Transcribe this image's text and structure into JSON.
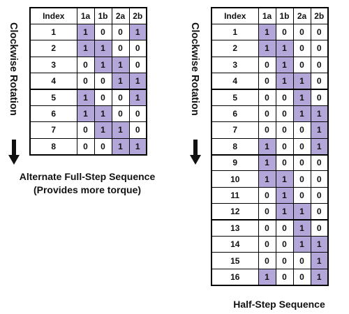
{
  "full_step": {
    "rotation_label": "Clockwise Rotation",
    "caption_line1": "Alternate Full-Step Sequence",
    "caption_line2": "(Provides more torque)",
    "headers": [
      "Index",
      "1a",
      "1b",
      "2a",
      "2b"
    ],
    "rows": [
      [
        "1",
        "1",
        "0",
        "0",
        "1"
      ],
      [
        "2",
        "1",
        "1",
        "0",
        "0"
      ],
      [
        "3",
        "0",
        "1",
        "1",
        "0"
      ],
      [
        "4",
        "0",
        "0",
        "1",
        "1"
      ],
      [
        "5",
        "1",
        "0",
        "0",
        "1"
      ],
      [
        "6",
        "1",
        "1",
        "0",
        "0"
      ],
      [
        "7",
        "0",
        "1",
        "1",
        "0"
      ],
      [
        "8",
        "0",
        "0",
        "1",
        "1"
      ]
    ],
    "highlight_color": "#b3a6d8"
  },
  "half_step": {
    "rotation_label": "Clockwise Rotation",
    "caption": "Half-Step Sequence",
    "headers": [
      "Index",
      "1a",
      "1b",
      "2a",
      "2b"
    ],
    "rows": [
      [
        "1",
        "1",
        "0",
        "0",
        "0"
      ],
      [
        "2",
        "1",
        "1",
        "0",
        "0"
      ],
      [
        "3",
        "0",
        "1",
        "0",
        "0"
      ],
      [
        "4",
        "0",
        "1",
        "1",
        "0"
      ],
      [
        "5",
        "0",
        "0",
        "1",
        "0"
      ],
      [
        "6",
        "0",
        "0",
        "1",
        "1"
      ],
      [
        "7",
        "0",
        "0",
        "0",
        "1"
      ],
      [
        "8",
        "1",
        "0",
        "0",
        "1"
      ],
      [
        "9",
        "1",
        "0",
        "0",
        "0"
      ],
      [
        "10",
        "1",
        "1",
        "0",
        "0"
      ],
      [
        "11",
        "0",
        "1",
        "0",
        "0"
      ],
      [
        "12",
        "0",
        "1",
        "1",
        "0"
      ],
      [
        "13",
        "0",
        "0",
        "1",
        "0"
      ],
      [
        "14",
        "0",
        "0",
        "1",
        "1"
      ],
      [
        "15",
        "0",
        "0",
        "0",
        "1"
      ],
      [
        "16",
        "1",
        "0",
        "0",
        "1"
      ]
    ],
    "highlight_color": "#b3a6d8"
  }
}
